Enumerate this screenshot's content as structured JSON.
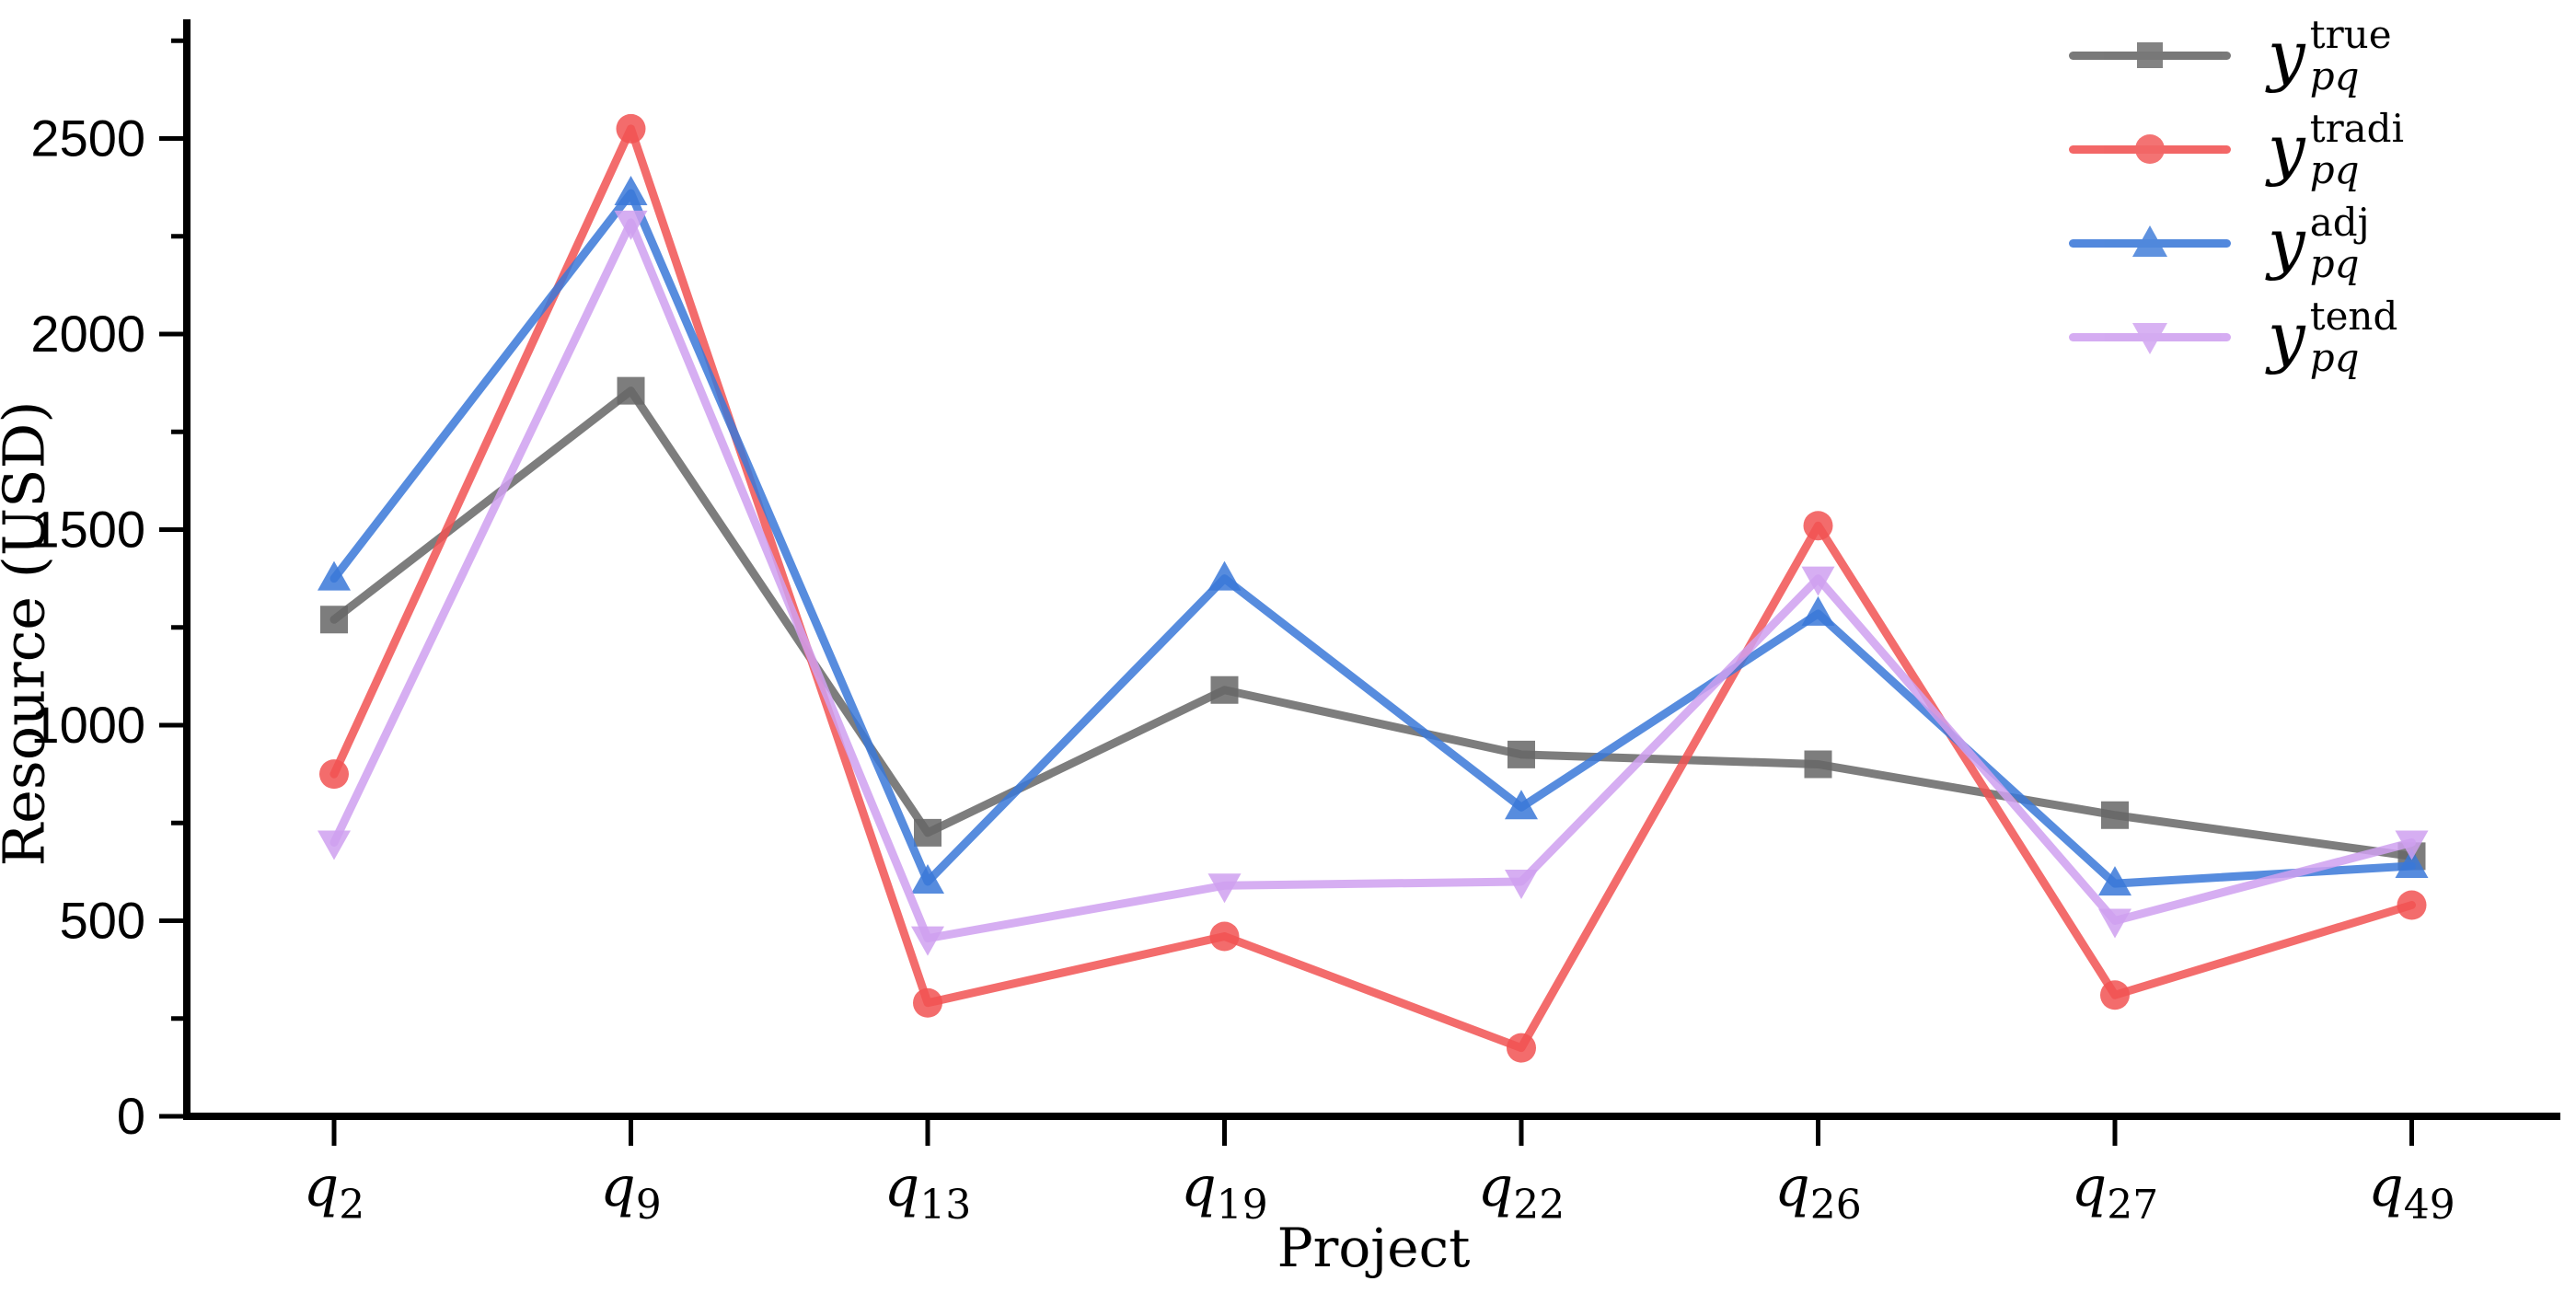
{
  "chart_data": {
    "type": "line",
    "title": "",
    "xlabel": "Project",
    "ylabel": "Resource (USD)",
    "categories": [
      "q2",
      "q9",
      "q13",
      "q19",
      "q22",
      "q26",
      "q27",
      "q49"
    ],
    "yticks": [
      0,
      500,
      1000,
      1500,
      2000,
      2500
    ],
    "ylim": [
      0,
      2800
    ],
    "minor_tick_step": 250,
    "grid": "off",
    "legend_position": "top-right",
    "axis_color": "#000000",
    "series": [
      {
        "name": "y_pq_true",
        "label": {
          "base": "y",
          "sub": "pq",
          "sup": "true"
        },
        "color": "#666666",
        "marker": "square",
        "values": [
          1270,
          1855,
          725,
          1090,
          925,
          900,
          770,
          665
        ]
      },
      {
        "name": "y_pq_tradi",
        "label": {
          "base": "y",
          "sub": "pq",
          "sup": "tradi"
        },
        "color": "#f15252",
        "marker": "circle",
        "values": [
          875,
          2525,
          290,
          460,
          175,
          1510,
          310,
          540
        ]
      },
      {
        "name": "y_pq_adj",
        "label": {
          "base": "y",
          "sub": "pq",
          "sup": "adj"
        },
        "color": "#3a78d8",
        "marker": "triangle-up",
        "values": [
          1375,
          2360,
          600,
          1375,
          790,
          1285,
          595,
          640
        ]
      },
      {
        "name": "y_pq_tend",
        "label": {
          "base": "y",
          "sub": "pq",
          "sup": "tend"
        },
        "color": "#cfa0f0",
        "marker": "triangle-down",
        "values": [
          700,
          2285,
          455,
          590,
          600,
          1375,
          500,
          700
        ]
      }
    ]
  }
}
